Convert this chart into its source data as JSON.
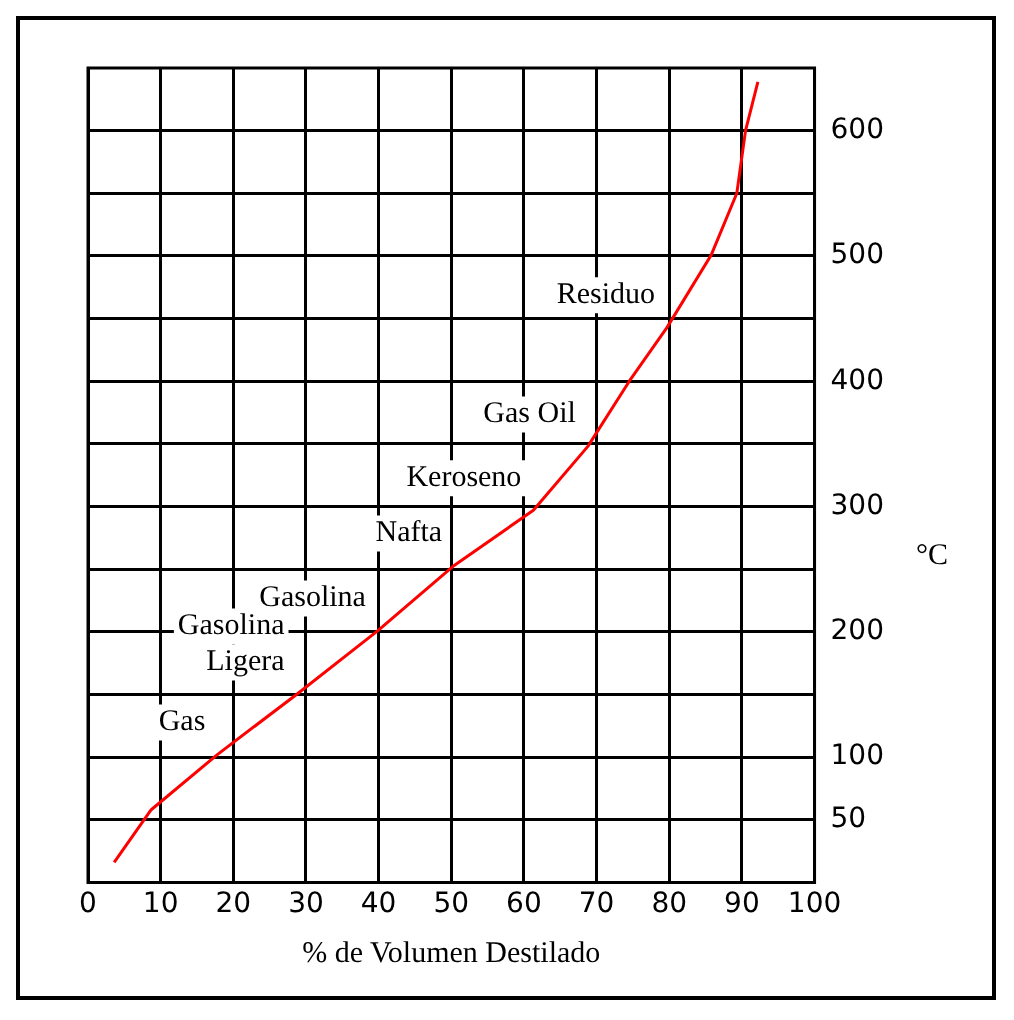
{
  "chart_data": {
    "type": "line",
    "xlabel": "% de Volumen Destilado",
    "ylabel": "°C",
    "x": [
      3.6,
      8.7,
      17.8,
      28.7,
      39.9,
      50.4,
      61.3,
      68.8,
      74.5,
      79.7,
      85.8,
      89.3,
      90.5,
      92.2
    ],
    "series": [
      {
        "color": "#ff0000",
        "values": [
          16,
          58,
          102,
          150,
          201,
          253,
          297,
          348,
          400,
          443,
          501,
          550,
          600,
          639
        ]
      }
    ],
    "xlim": [
      0,
      100
    ],
    "xticks": [
      0,
      10,
      20,
      30,
      40,
      50,
      60,
      70,
      80,
      90,
      100
    ],
    "ylim": [
      0,
      650
    ],
    "yticks": [
      50,
      100,
      {
        "value": 150,
        "label": null
      },
      200,
      {
        "value": 250,
        "label": null
      },
      300,
      {
        "value": 350,
        "label": null
      },
      400,
      {
        "value": 450,
        "label": null
      },
      500,
      {
        "value": 550,
        "label": null
      },
      600
    ],
    "grid": true,
    "marker": "none",
    "line_style": "solid",
    "annotations": [
      {
        "text": "Gas",
        "x": 17.8,
        "y": 102
      },
      {
        "text": "Gasolina Ligera",
        "x": 28.7,
        "y": 150
      },
      {
        "text": "Gasolina",
        "x": 39.9,
        "y": 201
      },
      {
        "text": "Nafta",
        "x": 50.4,
        "y": 253
      },
      {
        "text": "Keroseno",
        "x": 61.3,
        "y": 297
      },
      {
        "text": "Gas Oil",
        "x": 68.8,
        "y": 348
      },
      {
        "text": "Residuo",
        "x": 79.7,
        "y": 443
      }
    ]
  }
}
